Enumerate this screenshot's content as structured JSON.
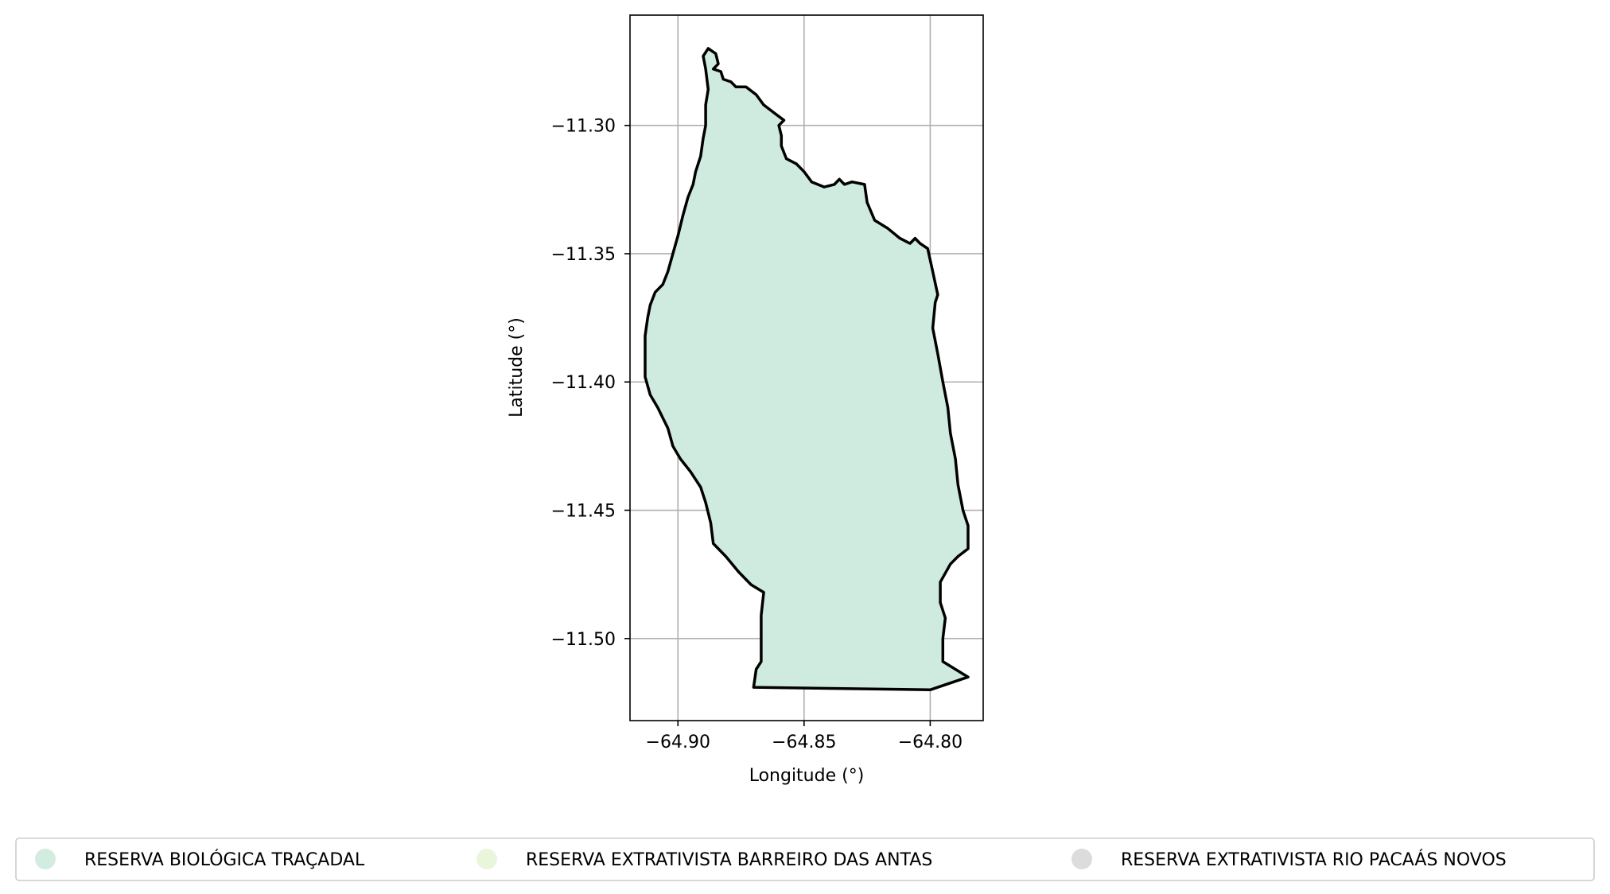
{
  "map": {
    "x_axis": {
      "label": "Longitude (°)",
      "ticks": [
        {
          "value": -64.9,
          "label": "−64.90"
        },
        {
          "value": -64.85,
          "label": "−64.85"
        },
        {
          "value": -64.8,
          "label": "−64.80"
        }
      ],
      "range": [
        -64.919,
        -64.779
      ]
    },
    "y_axis": {
      "label": "Latitude (°)",
      "ticks": [
        {
          "value": -11.3,
          "label": "−11.30"
        },
        {
          "value": -11.35,
          "label": "−11.35"
        },
        {
          "value": -11.4,
          "label": "−11.40"
        },
        {
          "value": -11.45,
          "label": "−11.45"
        },
        {
          "value": -11.5,
          "label": "−11.50"
        }
      ],
      "range": [
        -11.532,
        -11.257
      ]
    },
    "grid": true,
    "region": {
      "fill_color": "#cfeadf",
      "outline_color": "#000000",
      "boundary_lonlat": [
        [
          -64.888,
          -11.27
        ],
        [
          -64.885,
          -11.272
        ],
        [
          -64.884,
          -11.276
        ],
        [
          -64.886,
          -11.278
        ],
        [
          -64.883,
          -11.279
        ],
        [
          -64.882,
          -11.282
        ],
        [
          -64.879,
          -11.283
        ],
        [
          -64.877,
          -11.285
        ],
        [
          -64.873,
          -11.285
        ],
        [
          -64.869,
          -11.288
        ],
        [
          -64.866,
          -11.292
        ],
        [
          -64.862,
          -11.295
        ],
        [
          -64.858,
          -11.298
        ],
        [
          -64.86,
          -11.3
        ],
        [
          -64.859,
          -11.304
        ],
        [
          -64.859,
          -11.308
        ],
        [
          -64.857,
          -11.313
        ],
        [
          -64.853,
          -11.315
        ],
        [
          -64.85,
          -11.318
        ],
        [
          -64.847,
          -11.322
        ],
        [
          -64.842,
          -11.324
        ],
        [
          -64.838,
          -11.323
        ],
        [
          -64.836,
          -11.321
        ],
        [
          -64.834,
          -11.323
        ],
        [
          -64.831,
          -11.322
        ],
        [
          -64.826,
          -11.323
        ],
        [
          -64.825,
          -11.33
        ],
        [
          -64.822,
          -11.337
        ],
        [
          -64.817,
          -11.34
        ],
        [
          -64.812,
          -11.344
        ],
        [
          -64.808,
          -11.346
        ],
        [
          -64.806,
          -11.344
        ],
        [
          -64.804,
          -11.346
        ],
        [
          -64.801,
          -11.348
        ],
        [
          -64.799,
          -11.357
        ],
        [
          -64.797,
          -11.366
        ],
        [
          -64.798,
          -11.369
        ],
        [
          -64.799,
          -11.379
        ],
        [
          -64.797,
          -11.389
        ],
        [
          -64.795,
          -11.4
        ],
        [
          -64.793,
          -11.41
        ],
        [
          -64.792,
          -11.42
        ],
        [
          -64.79,
          -11.43
        ],
        [
          -64.789,
          -11.44
        ],
        [
          -64.787,
          -11.45
        ],
        [
          -64.785,
          -11.456
        ],
        [
          -64.785,
          -11.465
        ],
        [
          -64.789,
          -11.468
        ],
        [
          -64.792,
          -11.471
        ],
        [
          -64.796,
          -11.478
        ],
        [
          -64.796,
          -11.486
        ],
        [
          -64.794,
          -11.492
        ],
        [
          -64.795,
          -11.5
        ],
        [
          -64.795,
          -11.509
        ],
        [
          -64.785,
          -11.515
        ],
        [
          -64.8,
          -11.52
        ],
        [
          -64.87,
          -11.519
        ],
        [
          -64.869,
          -11.512
        ],
        [
          -64.867,
          -11.509
        ],
        [
          -64.867,
          -11.5
        ],
        [
          -64.867,
          -11.491
        ],
        [
          -64.866,
          -11.482
        ],
        [
          -64.871,
          -11.479
        ],
        [
          -64.876,
          -11.474
        ],
        [
          -64.881,
          -11.468
        ],
        [
          -64.886,
          -11.463
        ],
        [
          -64.887,
          -11.455
        ],
        [
          -64.889,
          -11.447
        ],
        [
          -64.891,
          -11.441
        ],
        [
          -64.895,
          -11.435
        ],
        [
          -64.899,
          -11.43
        ],
        [
          -64.902,
          -11.425
        ],
        [
          -64.904,
          -11.418
        ],
        [
          -64.906,
          -11.414
        ],
        [
          -64.908,
          -11.41
        ],
        [
          -64.911,
          -11.405
        ],
        [
          -64.913,
          -11.398
        ],
        [
          -64.913,
          -11.39
        ],
        [
          -64.913,
          -11.382
        ],
        [
          -64.912,
          -11.375
        ],
        [
          -64.911,
          -11.37
        ],
        [
          -64.909,
          -11.365
        ],
        [
          -64.906,
          -11.362
        ],
        [
          -64.904,
          -11.357
        ],
        [
          -64.902,
          -11.35
        ],
        [
          -64.9,
          -11.343
        ],
        [
          -64.898,
          -11.335
        ],
        [
          -64.896,
          -11.328
        ],
        [
          -64.894,
          -11.323
        ],
        [
          -64.893,
          -11.318
        ],
        [
          -64.891,
          -11.312
        ],
        [
          -64.89,
          -11.305
        ],
        [
          -64.889,
          -11.3
        ],
        [
          -64.889,
          -11.292
        ],
        [
          -64.888,
          -11.286
        ],
        [
          -64.889,
          -11.278
        ],
        [
          -64.89,
          -11.273
        ]
      ]
    }
  },
  "legend": {
    "items": [
      {
        "label": "RESERVA BIOLÓGICA TRAÇADAL",
        "color": "#d2ece0"
      },
      {
        "label": "RESERVA EXTRATIVISTA BARREIRO DAS ANTAS",
        "color": "#eaf6dc"
      },
      {
        "label": "RESERVA EXTRATIVISTA RIO PACAÁS NOVOS",
        "color": "#dcdcdc"
      }
    ]
  }
}
